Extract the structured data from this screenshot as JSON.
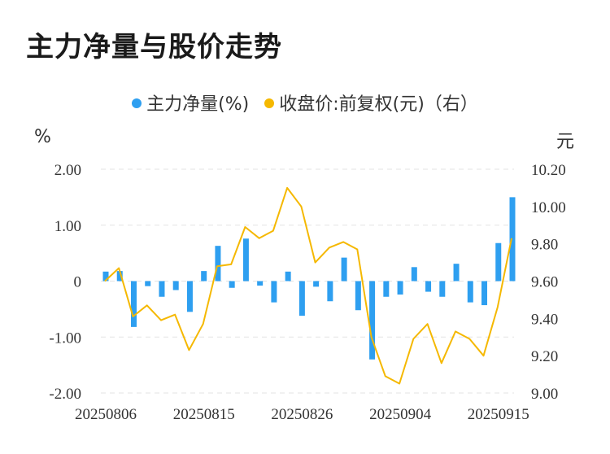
{
  "title": "主力净量与股价走势",
  "legend": {
    "series1": "主力净量(%)",
    "series2": "收盘价:前复权(元)（右）"
  },
  "units": {
    "left": "%",
    "right": "元"
  },
  "colors": {
    "bar": "#2e9ff0",
    "line": "#f5b800",
    "grid": "#e3e3e3"
  },
  "chart_data": {
    "type": "bar+line",
    "y_left": {
      "ticks": [
        "2.00",
        "1.00",
        "0",
        "-1.00",
        "-2.00"
      ],
      "range": [
        -2,
        2
      ]
    },
    "y_right": {
      "ticks": [
        "10.20",
        "10.00",
        "9.80",
        "9.60",
        "9.40",
        "9.20",
        "9.00"
      ],
      "range": [
        9.0,
        10.2
      ]
    },
    "x_tick_labels": [
      "20250806",
      "20250815",
      "20250826",
      "20250904",
      "20250915"
    ],
    "series": [
      {
        "name": "主力净量(%)",
        "type": "bar",
        "axis": "left",
        "values": [
          0.17,
          0.18,
          -0.82,
          -0.09,
          -0.28,
          -0.16,
          -0.55,
          0.18,
          0.63,
          -0.12,
          0.76,
          -0.08,
          -0.38,
          0.17,
          -0.62,
          -0.1,
          -0.36,
          0.42,
          -0.52,
          -1.4,
          -0.28,
          -0.24,
          0.25,
          -0.19,
          -0.28,
          0.31,
          -0.38,
          -0.43,
          0.68,
          1.5
        ]
      },
      {
        "name": "收盘价:前复权(元)（右）",
        "type": "line",
        "axis": "right",
        "values": [
          9.6,
          9.67,
          9.41,
          9.47,
          9.39,
          9.42,
          9.23,
          9.37,
          9.68,
          9.69,
          9.89,
          9.83,
          9.87,
          10.1,
          10.0,
          9.7,
          9.78,
          9.81,
          9.77,
          9.3,
          9.09,
          9.05,
          9.29,
          9.37,
          9.16,
          9.33,
          9.29,
          9.2,
          9.46,
          9.83
        ]
      }
    ]
  }
}
